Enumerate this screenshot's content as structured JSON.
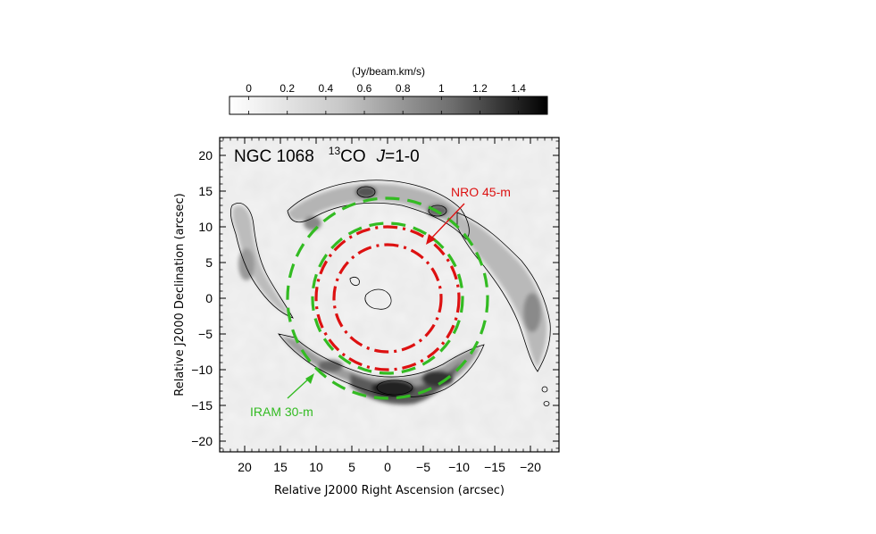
{
  "chart_data": {
    "type": "heatmap",
    "title": {
      "prefix": "NGC 1068",
      "isotope_superscript": "13",
      "molecule": "CO",
      "transition_letter": "J",
      "transition_rest": "=1-0"
    },
    "xlabel": "Relative J2000 Right Ascension (arcsec)",
    "ylabel": "Relative J2000 Declination (arcsec)",
    "xlim": [
      23.5,
      -24
    ],
    "ylim": [
      -21.5,
      22.5
    ],
    "x_ticks": [
      20,
      15,
      10,
      5,
      0,
      -5,
      -10,
      -15,
      -20
    ],
    "x_tick_labels": [
      "20",
      "15",
      "10",
      "5",
      "0",
      "−5",
      "−10",
      "−15",
      "−20"
    ],
    "y_ticks": [
      20,
      15,
      10,
      5,
      0,
      -5,
      -10,
      -15,
      -20
    ],
    "y_tick_labels": [
      "20",
      "15",
      "10",
      "5",
      "0",
      "−5",
      "−10",
      "−15",
      "−20"
    ],
    "colorbar": {
      "unit_label": "(Jy/beam.km/s)",
      "range": [
        -0.1,
        1.55
      ],
      "ticks": [
        0,
        0.2,
        0.4,
        0.6,
        0.8,
        1,
        1.2,
        1.4
      ],
      "tick_labels": [
        "0",
        "0.2",
        "0.4",
        "0.6",
        "0.8",
        "1",
        "1.2",
        "1.4"
      ],
      "colormap": "gray_reversed"
    },
    "beam_annotations": [
      {
        "label": "NRO 45-m",
        "color": "#dd1111",
        "style": "dash-dot",
        "radii": [
          7.5,
          10
        ]
      },
      {
        "label": "IRAM 30-m",
        "color": "#33bb22",
        "style": "dashed",
        "radii": [
          10.5,
          14
        ]
      }
    ],
    "emission_ring": {
      "name": "starburst ring / spiral arms",
      "peak_position": [
        0,
        -13
      ],
      "peak_value": 1.45,
      "contour_level": 0.35
    }
  }
}
